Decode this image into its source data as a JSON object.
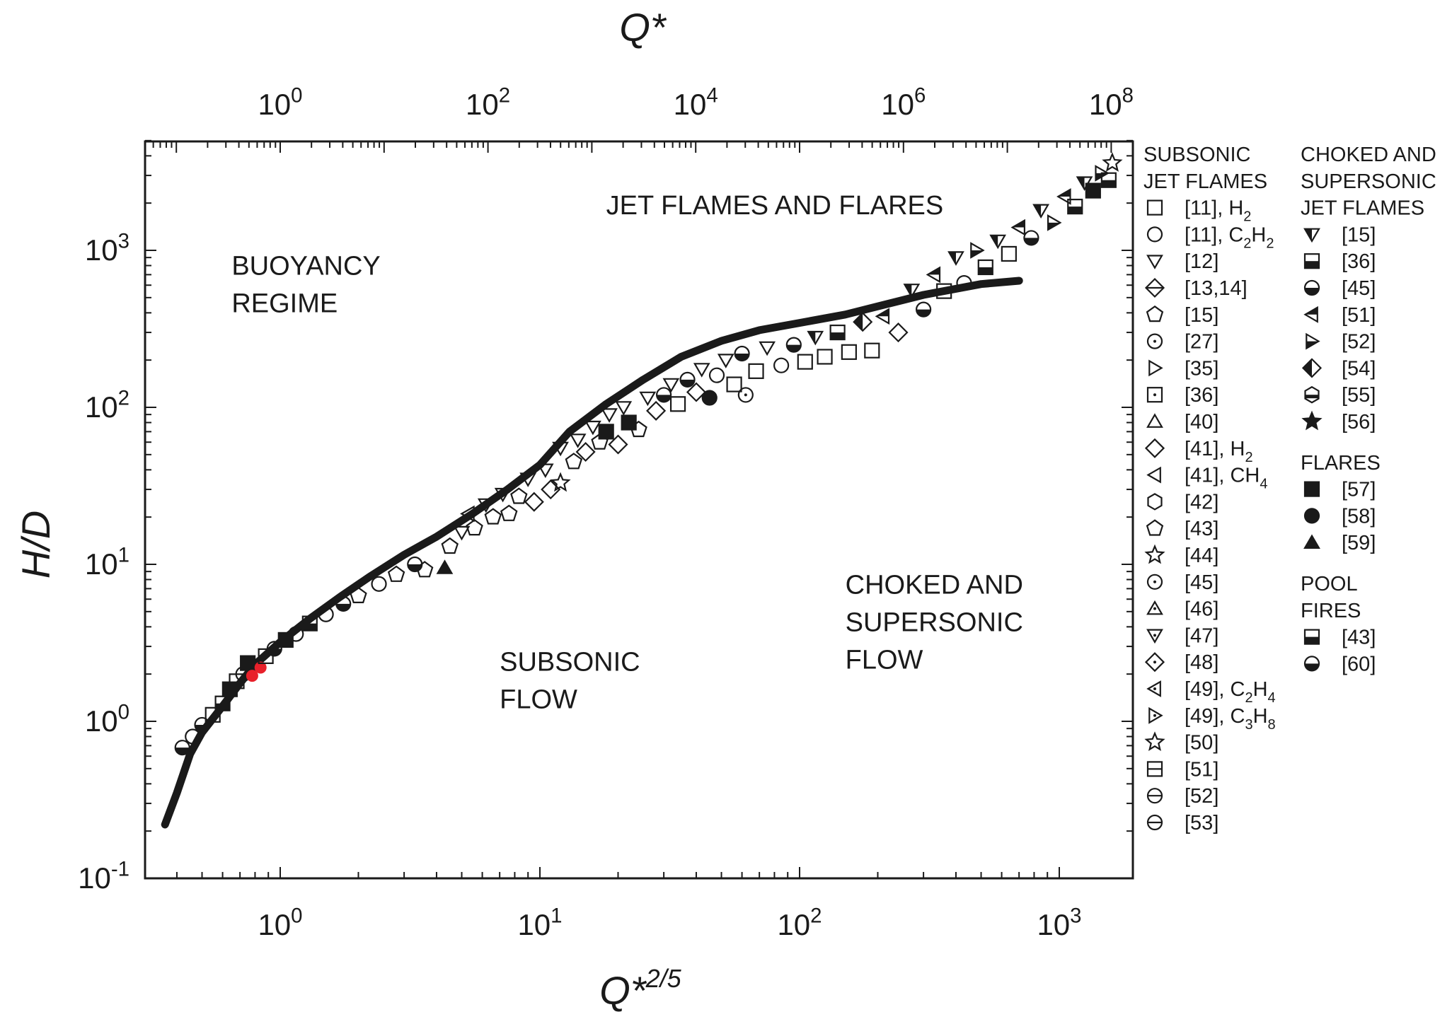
{
  "chart_data": {
    "type": "scatter",
    "x_axis": {
      "label": "Q*2/5",
      "label_base": "Q*",
      "label_exp": "2/5",
      "scale": "log",
      "range": [
        0.35,
        1800
      ],
      "ticks": [
        {
          "base": "10",
          "exp": "0",
          "value": 1
        },
        {
          "base": "10",
          "exp": "1",
          "value": 10
        },
        {
          "base": "10",
          "exp": "2",
          "value": 100
        },
        {
          "base": "10",
          "exp": "3",
          "value": 1000
        }
      ]
    },
    "top_axis": {
      "label": "Q*",
      "scale": "log",
      "ticks": [
        {
          "base": "10",
          "exp": "0",
          "value": 1
        },
        {
          "base": "10",
          "exp": "2",
          "value": 100
        },
        {
          "base": "10",
          "exp": "4",
          "value": 10000
        },
        {
          "base": "10",
          "exp": "6",
          "value": 1000000
        },
        {
          "base": "10",
          "exp": "8",
          "value": 100000000
        }
      ]
    },
    "y_axis": {
      "label": "H/D",
      "scale": "log",
      "range": [
        0.1,
        5000
      ],
      "ticks": [
        {
          "base": "10",
          "exp": "-1",
          "value": 0.1
        },
        {
          "base": "10",
          "exp": "0",
          "value": 1
        },
        {
          "base": "10",
          "exp": "1",
          "value": 10
        },
        {
          "base": "10",
          "exp": "2",
          "value": 100
        },
        {
          "base": "10",
          "exp": "3",
          "value": 1000
        }
      ]
    },
    "region_labels": [
      {
        "lines": [
          "JET FLAMES AND FLARES"
        ],
        "x": 18,
        "y": 1700
      },
      {
        "lines": [
          "BUOYANCY",
          "REGIME"
        ],
        "x": 0.65,
        "y": 700
      },
      {
        "lines": [
          "SUBSONIC",
          "FLOW"
        ],
        "x": 7,
        "y": 2.1
      },
      {
        "lines": [
          "CHOKED AND",
          "SUPERSONIC",
          "FLOW"
        ],
        "x": 150,
        "y": 6.5
      }
    ],
    "correlation_curve": {
      "x": [
        0.36,
        0.4,
        0.45,
        0.5,
        0.6,
        0.7,
        0.8,
        1.0,
        1.3,
        1.7,
        2.2,
        3.0,
        4.0,
        5.5,
        7.5,
        10,
        13,
        18,
        25,
        35,
        50,
        70,
        100,
        150,
        200,
        300,
        500,
        700
      ],
      "y": [
        0.22,
        0.35,
        0.62,
        0.85,
        1.25,
        1.75,
        2.3,
        3.2,
        4.5,
        6.2,
        8.3,
        11.5,
        15,
        21,
        30,
        43,
        70,
        105,
        150,
        210,
        265,
        310,
        345,
        390,
        440,
        520,
        610,
        640
      ]
    },
    "scatter_points": [
      {
        "x": 0.42,
        "y": 0.68,
        "m": "halfcircle"
      },
      {
        "x": 0.46,
        "y": 0.8,
        "m": "circle"
      },
      {
        "x": 0.5,
        "y": 0.95,
        "m": "halfcircle"
      },
      {
        "x": 0.55,
        "y": 1.1,
        "m": "square"
      },
      {
        "x": 0.6,
        "y": 1.3,
        "m": "halfsquare"
      },
      {
        "x": 0.64,
        "y": 1.6,
        "m": "fsquare"
      },
      {
        "x": 0.68,
        "y": 1.8,
        "m": "square"
      },
      {
        "x": 0.72,
        "y": 2.0,
        "m": "circle"
      },
      {
        "x": 0.75,
        "y": 2.35,
        "m": "fsquare"
      },
      {
        "x": 0.78,
        "y": 1.95,
        "m": "red"
      },
      {
        "x": 0.84,
        "y": 2.2,
        "m": "red"
      },
      {
        "x": 0.88,
        "y": 2.6,
        "m": "square"
      },
      {
        "x": 0.95,
        "y": 2.9,
        "m": "halfcircle"
      },
      {
        "x": 1.05,
        "y": 3.3,
        "m": "fsquare"
      },
      {
        "x": 1.15,
        "y": 3.6,
        "m": "circle"
      },
      {
        "x": 1.3,
        "y": 4.2,
        "m": "halfsquare"
      },
      {
        "x": 1.5,
        "y": 4.8,
        "m": "circle"
      },
      {
        "x": 1.75,
        "y": 5.6,
        "m": "halfcircle"
      },
      {
        "x": 2.0,
        "y": 6.3,
        "m": "pentagon"
      },
      {
        "x": 2.4,
        "y": 7.5,
        "m": "circle"
      },
      {
        "x": 2.8,
        "y": 8.6,
        "m": "pentagon"
      },
      {
        "x": 3.3,
        "y": 10.0,
        "m": "halfcircle"
      },
      {
        "x": 3.6,
        "y": 9.2,
        "m": "pentagon"
      },
      {
        "x": 4.3,
        "y": 9.5,
        "m": "ftriangle"
      },
      {
        "x": 4.5,
        "y": 13,
        "m": "pentagon"
      },
      {
        "x": 5.0,
        "y": 16,
        "m": "triangledown"
      },
      {
        "x": 5.3,
        "y": 21,
        "m": "triangleleft"
      },
      {
        "x": 5.6,
        "y": 17,
        "m": "pentagon"
      },
      {
        "x": 6.2,
        "y": 24,
        "m": "triangledown"
      },
      {
        "x": 6.6,
        "y": 20,
        "m": "pentagon"
      },
      {
        "x": 7.2,
        "y": 28,
        "m": "triangledown"
      },
      {
        "x": 7.6,
        "y": 21,
        "m": "pentagon"
      },
      {
        "x": 8.3,
        "y": 27,
        "m": "pentagon"
      },
      {
        "x": 9.0,
        "y": 35,
        "m": "triangledown"
      },
      {
        "x": 9.5,
        "y": 25,
        "m": "diamond"
      },
      {
        "x": 10.5,
        "y": 40,
        "m": "triangledown"
      },
      {
        "x": 11,
        "y": 30,
        "m": "diamond"
      },
      {
        "x": 12,
        "y": 33,
        "m": "star"
      },
      {
        "x": 12,
        "y": 55,
        "m": "triangledown"
      },
      {
        "x": 13.5,
        "y": 45,
        "m": "pentagon"
      },
      {
        "x": 14,
        "y": 62,
        "m": "triangledown"
      },
      {
        "x": 15,
        "y": 52,
        "m": "diamond"
      },
      {
        "x": 16,
        "y": 75,
        "m": "triangledown"
      },
      {
        "x": 17,
        "y": 60,
        "m": "pentagon"
      },
      {
        "x": 18,
        "y": 70,
        "m": "fsquare"
      },
      {
        "x": 18.5,
        "y": 90,
        "m": "triangledown"
      },
      {
        "x": 20,
        "y": 58,
        "m": "diamond"
      },
      {
        "x": 21,
        "y": 100,
        "m": "triangledown"
      },
      {
        "x": 22,
        "y": 80,
        "m": "fsquare"
      },
      {
        "x": 24,
        "y": 72,
        "m": "pentagon"
      },
      {
        "x": 26,
        "y": 115,
        "m": "triangledown"
      },
      {
        "x": 28,
        "y": 95,
        "m": "diamond"
      },
      {
        "x": 30,
        "y": 120,
        "m": "halfcircle"
      },
      {
        "x": 32,
        "y": 140,
        "m": "triangledown"
      },
      {
        "x": 34,
        "y": 105,
        "m": "square"
      },
      {
        "x": 37,
        "y": 150,
        "m": "halfcircle"
      },
      {
        "x": 40,
        "y": 125,
        "m": "diamond"
      },
      {
        "x": 42,
        "y": 175,
        "m": "triangledown"
      },
      {
        "x": 45,
        "y": 115,
        "m": "fcircle"
      },
      {
        "x": 48,
        "y": 160,
        "m": "circle"
      },
      {
        "x": 52,
        "y": 200,
        "m": "triangledown"
      },
      {
        "x": 56,
        "y": 140,
        "m": "square"
      },
      {
        "x": 60,
        "y": 220,
        "m": "halfcircle"
      },
      {
        "x": 62,
        "y": 120,
        "m": "circledot"
      },
      {
        "x": 68,
        "y": 170,
        "m": "square"
      },
      {
        "x": 75,
        "y": 240,
        "m": "triangledown"
      },
      {
        "x": 85,
        "y": 185,
        "m": "circle"
      },
      {
        "x": 95,
        "y": 250,
        "m": "halfcircle"
      },
      {
        "x": 105,
        "y": 195,
        "m": "square"
      },
      {
        "x": 115,
        "y": 280,
        "m": "ftriangledown"
      },
      {
        "x": 125,
        "y": 210,
        "m": "square"
      },
      {
        "x": 140,
        "y": 300,
        "m": "halfsquare"
      },
      {
        "x": 155,
        "y": 225,
        "m": "square"
      },
      {
        "x": 175,
        "y": 350,
        "m": "fdiamond"
      },
      {
        "x": 190,
        "y": 230,
        "m": "square"
      },
      {
        "x": 210,
        "y": 380,
        "m": "ftriangleleft"
      },
      {
        "x": 240,
        "y": 300,
        "m": "diamond"
      },
      {
        "x": 270,
        "y": 560,
        "m": "ftriangledown"
      },
      {
        "x": 300,
        "y": 420,
        "m": "halfcircle"
      },
      {
        "x": 330,
        "y": 700,
        "m": "ftriangleleft"
      },
      {
        "x": 360,
        "y": 550,
        "m": "square"
      },
      {
        "x": 400,
        "y": 900,
        "m": "ftriangledown"
      },
      {
        "x": 430,
        "y": 620,
        "m": "circle"
      },
      {
        "x": 480,
        "y": 1000,
        "m": "ftriangleright"
      },
      {
        "x": 520,
        "y": 780,
        "m": "halfsquare"
      },
      {
        "x": 580,
        "y": 1150,
        "m": "ftriangledown"
      },
      {
        "x": 640,
        "y": 950,
        "m": "square"
      },
      {
        "x": 700,
        "y": 1400,
        "m": "ftriangleleft"
      },
      {
        "x": 780,
        "y": 1200,
        "m": "halfcircle"
      },
      {
        "x": 850,
        "y": 1800,
        "m": "ftriangledown"
      },
      {
        "x": 950,
        "y": 1500,
        "m": "ftriangleright"
      },
      {
        "x": 1050,
        "y": 2200,
        "m": "ftriangleleft"
      },
      {
        "x": 1150,
        "y": 1900,
        "m": "halfsquare"
      },
      {
        "x": 1250,
        "y": 2700,
        "m": "ftriangledown"
      },
      {
        "x": 1350,
        "y": 2400,
        "m": "fsquare"
      },
      {
        "x": 1450,
        "y": 3100,
        "m": "ftriangleright"
      },
      {
        "x": 1550,
        "y": 2800,
        "m": "halfsquare"
      },
      {
        "x": 1600,
        "y": 3600,
        "m": "star"
      }
    ],
    "legend": {
      "groups": [
        {
          "col": 0,
          "title": [
            "SUBSONIC",
            "JET FLAMES"
          ],
          "entries": [
            {
              "marker": "square",
              "text": "[11], H",
              "sub": "2"
            },
            {
              "marker": "circle",
              "text": "[11], C",
              "sub": "2",
              "text2": "H",
              "sub2": "2"
            },
            {
              "marker": "triangledown",
              "text": "[12]"
            },
            {
              "marker": "diamondcross",
              "text": "[13,14]"
            },
            {
              "marker": "pentagon",
              "text": "[15]"
            },
            {
              "marker": "circledot",
              "text": "[27]"
            },
            {
              "marker": "triangleright",
              "text": "[35]"
            },
            {
              "marker": "squaredot",
              "text": "[36]"
            },
            {
              "marker": "triangle",
              "text": "[40]"
            },
            {
              "marker": "diamond",
              "text": "[41], H",
              "sub": "2"
            },
            {
              "marker": "triangleleft",
              "text": "[41], CH",
              "sub": "4"
            },
            {
              "marker": "hexagon",
              "text": "[42]"
            },
            {
              "marker": "pentagon",
              "text": "[43]"
            },
            {
              "marker": "star",
              "text": "[44]"
            },
            {
              "marker": "circledot",
              "text": "[45]"
            },
            {
              "marker": "triangledot",
              "text": "[46]"
            },
            {
              "marker": "triangledowndot",
              "text": "[47]"
            },
            {
              "marker": "diamonddot",
              "text": "[48]"
            },
            {
              "marker": "triangleleftdot",
              "text": "[49], C",
              "sub": "2",
              "text2": "H",
              "sub2": "4"
            },
            {
              "marker": "trianglerightdot",
              "text": "[49], C",
              "sub": "3",
              "text2": "H",
              "sub2": "8"
            },
            {
              "marker": "star",
              "text": "[50]"
            },
            {
              "marker": "squareline",
              "text": "[51]"
            },
            {
              "marker": "circleline",
              "text": "[52]"
            },
            {
              "marker": "circleline",
              "text": "[53]"
            }
          ]
        },
        {
          "col": 1,
          "title": [
            "CHOKED AND",
            "SUPERSONIC",
            "JET FLAMES"
          ],
          "entries": [
            {
              "marker": "ftriangledown",
              "text": "[15]"
            },
            {
              "marker": "halfsquare",
              "text": "[36]"
            },
            {
              "marker": "halfcircle",
              "text": "[45]"
            },
            {
              "marker": "ftriangleleft",
              "text": "[51]"
            },
            {
              "marker": "ftriangleright",
              "text": "[52]"
            },
            {
              "marker": "fdiamond",
              "text": "[54]"
            },
            {
              "marker": "halfhexagon",
              "text": "[55]"
            },
            {
              "marker": "halfstar",
              "text": "[56]"
            }
          ]
        },
        {
          "col": 1,
          "title": [
            "FLARES"
          ],
          "entries": [
            {
              "marker": "fsquare",
              "text": "[57]"
            },
            {
              "marker": "fcircle",
              "text": "[58]"
            },
            {
              "marker": "ftriangle",
              "text": "[59]"
            }
          ]
        },
        {
          "col": 1,
          "title": [
            "POOL",
            "FIRES"
          ],
          "entries": [
            {
              "marker": "halfsquare",
              "text": "[43]"
            },
            {
              "marker": "halfcircle",
              "text": "[60]"
            }
          ]
        }
      ]
    },
    "colors": {
      "ink": "#1a1a1a",
      "highlight": "#e8202a",
      "background": "#ffffff"
    }
  }
}
